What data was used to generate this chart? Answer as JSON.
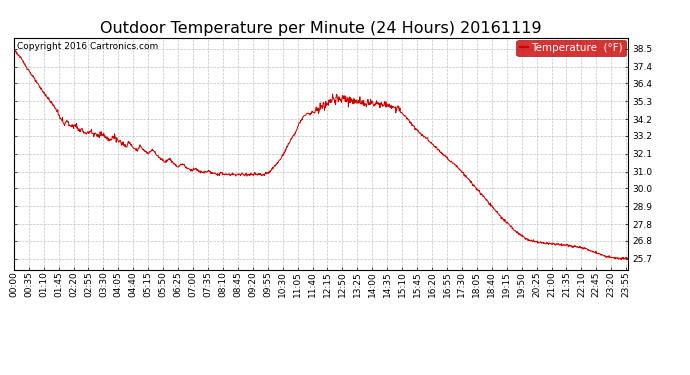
{
  "title": "Outdoor Temperature per Minute (24 Hours) 20161119",
  "copyright_text": "Copyright 2016 Cartronics.com",
  "legend_label": "Temperature  (°F)",
  "line_color": "#cc0000",
  "legend_bg": "#cc0000",
  "legend_text_color": "#ffffff",
  "background_color": "#ffffff",
  "grid_color": "#bbbbbb",
  "ylim": [
    25.0,
    39.2
  ],
  "yticks": [
    25.7,
    26.8,
    27.8,
    28.9,
    30.0,
    31.0,
    32.1,
    33.2,
    34.2,
    35.3,
    36.4,
    37.4,
    38.5
  ],
  "xtick_interval_minutes": 35,
  "total_minutes": 1440,
  "title_fontsize": 11.5,
  "axis_fontsize": 6.5,
  "copyright_fontsize": 6.5
}
